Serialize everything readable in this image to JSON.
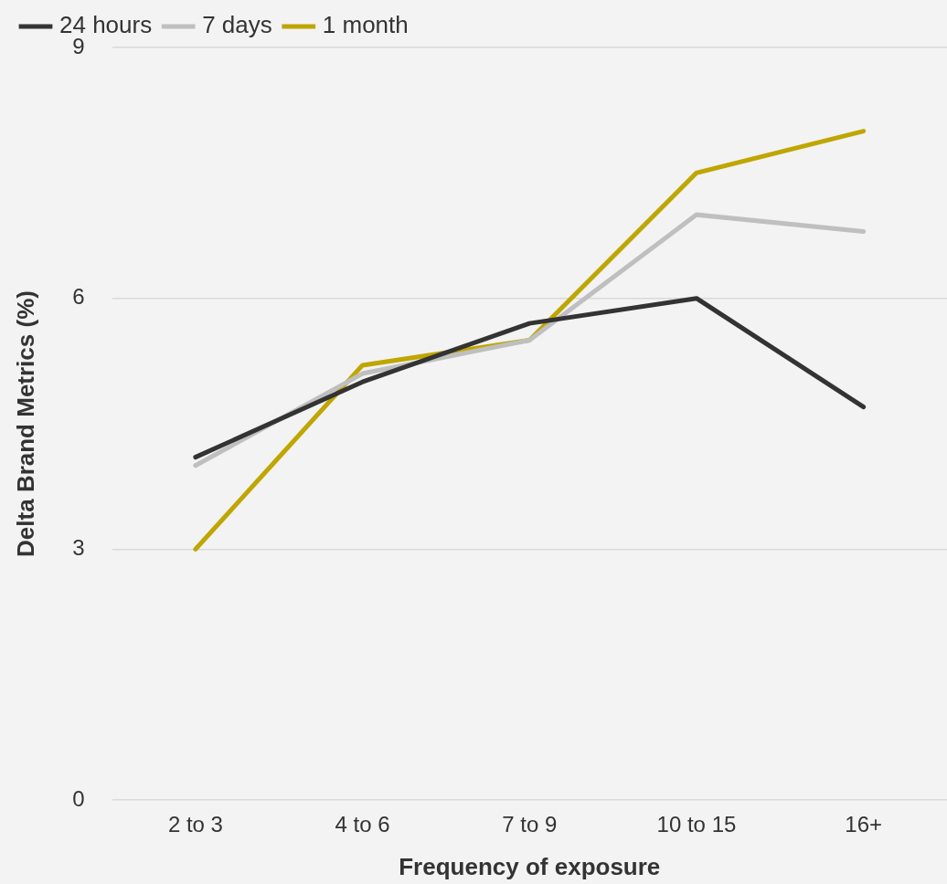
{
  "chart_data": {
    "type": "line",
    "xlabel": "Frequency of exposure",
    "ylabel": "Delta Brand Metrics (%)",
    "categories": [
      "2 to 3",
      "4 to 6",
      "7 to 9",
      "10 to 15",
      "16+"
    ],
    "series": [
      {
        "name": "24 hours",
        "color": "#333333",
        "values": [
          4.1,
          5.0,
          5.7,
          6.0,
          4.7
        ]
      },
      {
        "name": "7 days",
        "color": "#bfbfbf",
        "values": [
          4.0,
          5.1,
          5.5,
          7.0,
          6.8
        ]
      },
      {
        "name": "1 month",
        "color": "#bfa600",
        "values": [
          3.0,
          5.2,
          5.5,
          7.5,
          8.0
        ]
      }
    ],
    "ylim": [
      0,
      9
    ],
    "yticks": [
      0,
      3,
      6,
      9
    ],
    "grid": "y",
    "legend": "top left",
    "marker": "none",
    "line_style": "solid"
  }
}
